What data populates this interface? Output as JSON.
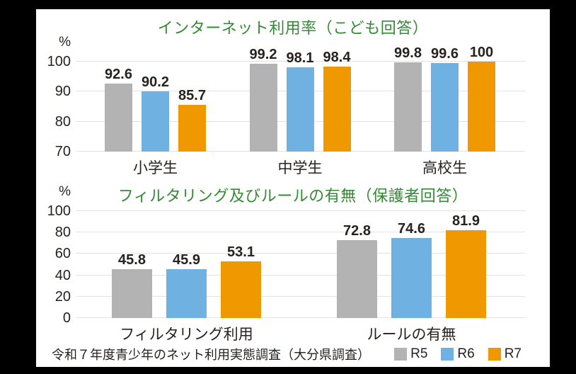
{
  "page": {
    "background": "#000000",
    "card_background": "#ffffff"
  },
  "colors": {
    "title_green": "#358a35",
    "bar_gray": "#b3b3b4",
    "bar_blue": "#6fb2e2",
    "bar_orange": "#f09800",
    "grid": "#e2e2e2",
    "text": "#272220"
  },
  "chart_data": [
    {
      "type": "bar",
      "title": "インターネット利用率（こども回答）",
      "unit": "%",
      "categories": [
        "小学生",
        "中学生",
        "高校生"
      ],
      "series": [
        {
          "name": "R5",
          "color_key": "bar_gray",
          "values": [
            92.6,
            99.2,
            99.8
          ]
        },
        {
          "name": "R6",
          "color_key": "bar_blue",
          "values": [
            90.2,
            98.1,
            99.6
          ]
        },
        {
          "name": "R7",
          "color_key": "bar_orange",
          "values": [
            85.7,
            98.4,
            100
          ]
        }
      ],
      "ylim": [
        70,
        100
      ],
      "yticks": [
        100,
        90,
        80,
        70
      ],
      "grid": true,
      "legend_position": "none"
    },
    {
      "type": "bar",
      "title": "フィルタリング及びルールの有無（保護者回答）",
      "unit": "%",
      "categories": [
        "フィルタリング利用",
        "ルールの有無"
      ],
      "series": [
        {
          "name": "R5",
          "color_key": "bar_gray",
          "values": [
            45.8,
            72.8
          ]
        },
        {
          "name": "R6",
          "color_key": "bar_blue",
          "values": [
            45.9,
            74.6
          ]
        },
        {
          "name": "R7",
          "color_key": "bar_orange",
          "values": [
            53.1,
            81.9
          ]
        }
      ],
      "ylim": [
        0,
        100
      ],
      "yticks": [
        100,
        80,
        60,
        40,
        20,
        0
      ],
      "grid": true,
      "legend_position": "bottom"
    }
  ],
  "footer": {
    "source": "令和７年度青少年のネット利用実態調査（大分県調査）",
    "legend": [
      {
        "label": "R5",
        "color_key": "bar_gray"
      },
      {
        "label": "R6",
        "color_key": "bar_blue"
      },
      {
        "label": "R7",
        "color_key": "bar_orange"
      }
    ]
  }
}
